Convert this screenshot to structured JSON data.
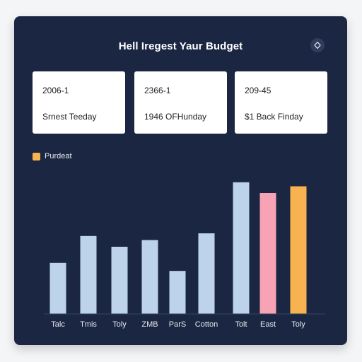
{
  "header": {
    "title": "Hell Iregest Yaur Budget",
    "icon": "diamond-icon"
  },
  "cards": [
    {
      "line1": "2006-1",
      "line2": "Srnest Teeday"
    },
    {
      "line1": "2366-1",
      "line2": "1946 OFHunday"
    },
    {
      "line1": "209-45",
      "line2": "$1 Back Finday"
    }
  ],
  "legend": {
    "label": "Purdeat",
    "color": "#f7b34f"
  },
  "chart_data": {
    "type": "bar",
    "categories": [
      "Talc",
      "Tmis",
      "Toly",
      "ZMB",
      "ParS",
      "Cotton",
      "Tolt",
      "East",
      "Toly"
    ],
    "values": [
      38,
      58,
      50,
      55,
      32,
      60,
      98,
      90,
      95
    ],
    "colors": [
      "#bcd3ea",
      "#bcd3ea",
      "#bcd3ea",
      "#bcd3ea",
      "#bcd3ea",
      "#bcd3ea",
      "#bcd3ea",
      "#f7a2b5",
      "#f7b34f"
    ],
    "ylim": [
      0,
      100
    ],
    "title": "",
    "xlabel": "",
    "ylabel": ""
  }
}
